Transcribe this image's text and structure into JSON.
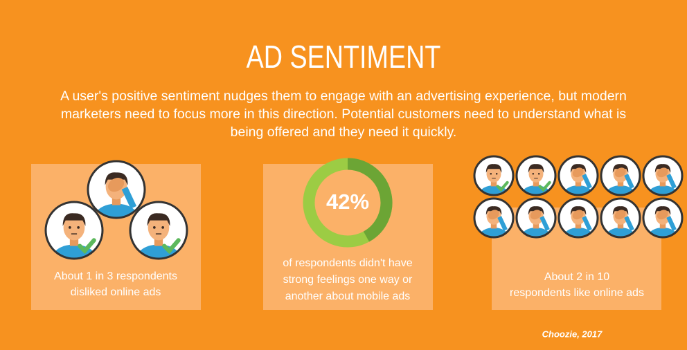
{
  "header": {
    "title": "AD SENTIMENT",
    "intro": [
      "A user's positive sentiment nudges them to engage with an advertising experience, but modern",
      "marketers need to focus more in this direction. Potential customers need to understand what is",
      "being offered and they need it quickly."
    ]
  },
  "panels": [
    {
      "caption": [
        "About 1 in 3 respondents",
        "disliked online ads"
      ]
    },
    {
      "donut": {
        "value": 42,
        "label": "42%"
      },
      "caption": [
        "of respondents didn't have",
        "strong feelings one way or",
        "another about mobile ads"
      ]
    },
    {
      "caption": [
        "About 2 in 10",
        "respondents like online ads"
      ]
    }
  ],
  "source": "Choozie, 2017"
}
